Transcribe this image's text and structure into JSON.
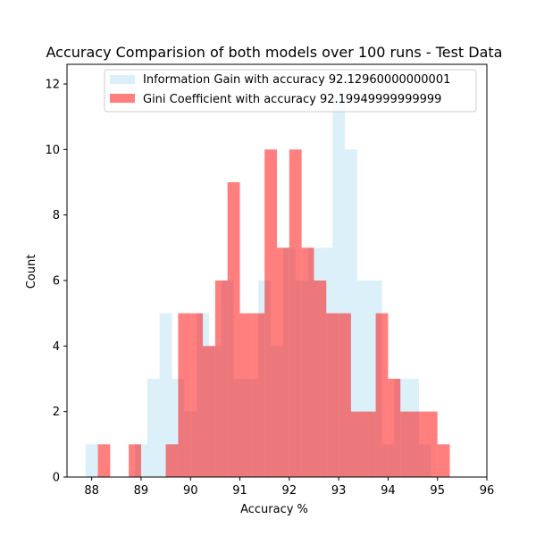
{
  "chart_data": {
    "type": "bar",
    "title": "Accuracy Comparision of both models over 100 runs - Test Data",
    "xlabel": "Accuracy %",
    "ylabel": "Count",
    "xlim": [
      87.5,
      96.0
    ],
    "ylim": [
      0,
      12.6
    ],
    "x_ticks": [
      88,
      89,
      90,
      91,
      92,
      93,
      94,
      95,
      96
    ],
    "y_ticks": [
      0,
      2,
      4,
      6,
      8,
      10,
      12
    ],
    "legend_position": "top-right",
    "grid": false,
    "series": [
      {
        "name": "Information Gain with accuracy 92.12960000000001",
        "color": "#87ceeb",
        "opacity": 0.3,
        "bins": [
          {
            "x0": 87.875,
            "x1": 88.125,
            "count": 1
          },
          {
            "x0": 88.125,
            "x1": 88.875,
            "count": 0
          },
          {
            "x0": 88.875,
            "x1": 89.125,
            "count": 1
          },
          {
            "x0": 89.125,
            "x1": 89.375,
            "count": 3
          },
          {
            "x0": 89.375,
            "x1": 89.625,
            "count": 5
          },
          {
            "x0": 89.625,
            "x1": 89.875,
            "count": 3
          },
          {
            "x0": 89.875,
            "x1": 90.125,
            "count": 2
          },
          {
            "x0": 90.125,
            "x1": 90.375,
            "count": 5
          },
          {
            "x0": 90.375,
            "x1": 90.625,
            "count": 4
          },
          {
            "x0": 90.625,
            "x1": 90.875,
            "count": 6
          },
          {
            "x0": 90.875,
            "x1": 91.125,
            "count": 3
          },
          {
            "x0": 91.125,
            "x1": 91.375,
            "count": 3
          },
          {
            "x0": 91.375,
            "x1": 91.625,
            "count": 6
          },
          {
            "x0": 91.625,
            "x1": 91.875,
            "count": 4
          },
          {
            "x0": 91.875,
            "x1": 92.125,
            "count": 7
          },
          {
            "x0": 92.125,
            "x1": 92.375,
            "count": 6
          },
          {
            "x0": 92.375,
            "x1": 92.625,
            "count": 7
          },
          {
            "x0": 92.625,
            "x1": 92.875,
            "count": 7
          },
          {
            "x0": 92.875,
            "x1": 93.125,
            "count": 11.5
          },
          {
            "x0": 93.125,
            "x1": 93.375,
            "count": 10
          },
          {
            "x0": 93.375,
            "x1": 93.625,
            "count": 6
          },
          {
            "x0": 93.625,
            "x1": 93.875,
            "count": 6
          },
          {
            "x0": 93.875,
            "x1": 94.125,
            "count": 1
          },
          {
            "x0": 94.125,
            "x1": 94.375,
            "count": 3
          },
          {
            "x0": 94.375,
            "x1": 94.625,
            "count": 3
          },
          {
            "x0": 94.625,
            "x1": 94.875,
            "count": 1
          }
        ]
      },
      {
        "name": "Gini Coefficient with accuracy 92.19949999999999",
        "color": "#ff0000",
        "opacity": 0.5,
        "bins": [
          {
            "x0": 88.125,
            "x1": 88.375,
            "count": 1
          },
          {
            "x0": 88.375,
            "x1": 88.75,
            "count": 0
          },
          {
            "x0": 88.75,
            "x1": 89.0,
            "count": 1
          },
          {
            "x0": 89.0,
            "x1": 89.5,
            "count": 0
          },
          {
            "x0": 89.5,
            "x1": 89.75,
            "count": 1
          },
          {
            "x0": 89.75,
            "x1": 90.0,
            "count": 5
          },
          {
            "x0": 90.0,
            "x1": 90.25,
            "count": 5
          },
          {
            "x0": 90.25,
            "x1": 90.5,
            "count": 4
          },
          {
            "x0": 90.5,
            "x1": 90.75,
            "count": 6
          },
          {
            "x0": 90.75,
            "x1": 91.0,
            "count": 9
          },
          {
            "x0": 91.0,
            "x1": 91.25,
            "count": 5
          },
          {
            "x0": 91.25,
            "x1": 91.5,
            "count": 5
          },
          {
            "x0": 91.5,
            "x1": 91.75,
            "count": 10
          },
          {
            "x0": 91.75,
            "x1": 92.0,
            "count": 7
          },
          {
            "x0": 92.0,
            "x1": 92.25,
            "count": 10
          },
          {
            "x0": 92.25,
            "x1": 92.5,
            "count": 7
          },
          {
            "x0": 92.5,
            "x1": 92.75,
            "count": 6
          },
          {
            "x0": 92.75,
            "x1": 93.0,
            "count": 5
          },
          {
            "x0": 93.0,
            "x1": 93.25,
            "count": 5
          },
          {
            "x0": 93.25,
            "x1": 93.75,
            "count": 2
          },
          {
            "x0": 93.75,
            "x1": 94.0,
            "count": 5
          },
          {
            "x0": 94.0,
            "x1": 94.25,
            "count": 3
          },
          {
            "x0": 94.25,
            "x1": 94.5,
            "count": 2
          },
          {
            "x0": 94.5,
            "x1": 94.75,
            "count": 2
          },
          {
            "x0": 94.75,
            "x1": 95.0,
            "count": 2
          },
          {
            "x0": 95.0,
            "x1": 95.25,
            "count": 1
          }
        ]
      }
    ]
  }
}
